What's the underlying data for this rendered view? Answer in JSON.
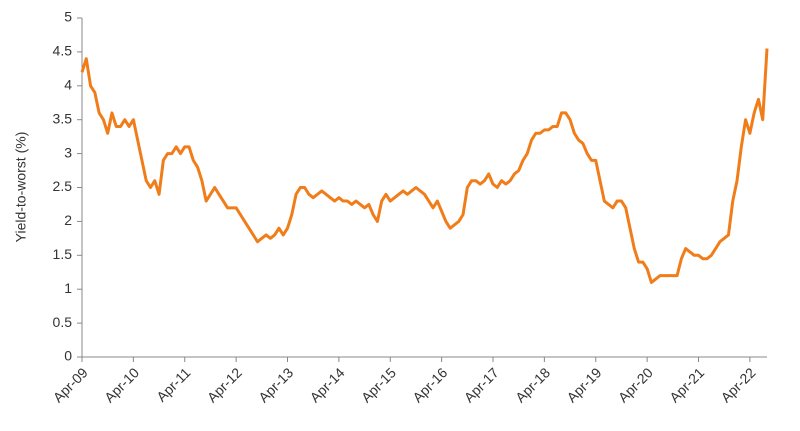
{
  "chart_data": {
    "type": "line",
    "y_label": "Yield-to-worst (%)",
    "categories": [
      "Apr-09",
      null,
      null,
      null,
      null,
      null,
      null,
      null,
      null,
      null,
      null,
      null,
      "Apr-10",
      null,
      null,
      null,
      null,
      null,
      null,
      null,
      null,
      null,
      null,
      null,
      "Apr-11",
      null,
      null,
      null,
      null,
      null,
      null,
      null,
      null,
      null,
      null,
      null,
      "Apr-12",
      null,
      null,
      null,
      null,
      null,
      null,
      null,
      null,
      null,
      null,
      null,
      "Apr-13",
      null,
      null,
      null,
      null,
      null,
      null,
      null,
      null,
      null,
      null,
      null,
      "Apr-14",
      null,
      null,
      null,
      null,
      null,
      null,
      null,
      null,
      null,
      null,
      null,
      "Apr-15",
      null,
      null,
      null,
      null,
      null,
      null,
      null,
      null,
      null,
      null,
      null,
      "Apr-16",
      null,
      null,
      null,
      null,
      null,
      null,
      null,
      null,
      null,
      null,
      null,
      "Apr-17",
      null,
      null,
      null,
      null,
      null,
      null,
      null,
      null,
      null,
      null,
      null,
      "Apr-18",
      null,
      null,
      null,
      null,
      null,
      null,
      null,
      null,
      null,
      null,
      null,
      "Apr-19",
      null,
      null,
      null,
      null,
      null,
      null,
      null,
      null,
      null,
      null,
      null,
      "Apr-20",
      null,
      null,
      null,
      null,
      null,
      null,
      null,
      null,
      null,
      null,
      null,
      "Apr-21",
      null,
      null,
      null,
      null,
      null,
      null,
      null,
      null,
      null,
      null,
      null,
      "Apr-22",
      null,
      null,
      null,
      null
    ],
    "values": [
      4.2,
      4.4,
      4.0,
      3.9,
      3.6,
      3.5,
      3.3,
      3.6,
      3.4,
      3.4,
      3.5,
      3.4,
      3.5,
      3.2,
      2.9,
      2.6,
      2.5,
      2.6,
      2.4,
      2.9,
      3.0,
      3.0,
      3.1,
      3.0,
      3.1,
      3.1,
      2.9,
      2.8,
      2.6,
      2.3,
      2.4,
      2.5,
      2.4,
      2.3,
      2.2,
      2.2,
      2.2,
      2.1,
      2.0,
      1.9,
      1.8,
      1.7,
      1.75,
      1.8,
      1.75,
      1.8,
      1.9,
      1.8,
      1.9,
      2.1,
      2.4,
      2.5,
      2.5,
      2.4,
      2.35,
      2.4,
      2.45,
      2.4,
      2.35,
      2.3,
      2.35,
      2.3,
      2.3,
      2.25,
      2.3,
      2.25,
      2.2,
      2.25,
      2.1,
      2.0,
      2.3,
      2.4,
      2.3,
      2.35,
      2.4,
      2.45,
      2.4,
      2.45,
      2.5,
      2.45,
      2.4,
      2.3,
      2.2,
      2.3,
      2.15,
      2.0,
      1.9,
      1.95,
      2.0,
      2.1,
      2.5,
      2.6,
      2.6,
      2.55,
      2.6,
      2.7,
      2.55,
      2.5,
      2.6,
      2.55,
      2.6,
      2.7,
      2.75,
      2.9,
      3.0,
      3.2,
      3.3,
      3.3,
      3.35,
      3.35,
      3.4,
      3.4,
      3.6,
      3.6,
      3.5,
      3.3,
      3.2,
      3.15,
      3.0,
      2.9,
      2.9,
      2.6,
      2.3,
      2.25,
      2.2,
      2.3,
      2.3,
      2.2,
      1.9,
      1.6,
      1.4,
      1.4,
      1.3,
      1.1,
      1.15,
      1.2,
      1.2,
      1.2,
      1.2,
      1.2,
      1.45,
      1.6,
      1.55,
      1.5,
      1.5,
      1.45,
      1.45,
      1.5,
      1.6,
      1.7,
      1.75,
      1.8,
      2.3,
      2.6,
      3.1,
      3.5,
      3.3,
      3.6,
      3.8,
      3.5,
      4.55
    ],
    "color": "#f07d1a",
    "ylim": [
      0,
      5
    ],
    "yticks": [
      0,
      0.5,
      1,
      1.5,
      2,
      2.5,
      3,
      3.5,
      4,
      4.5,
      5
    ],
    "grid": false
  }
}
